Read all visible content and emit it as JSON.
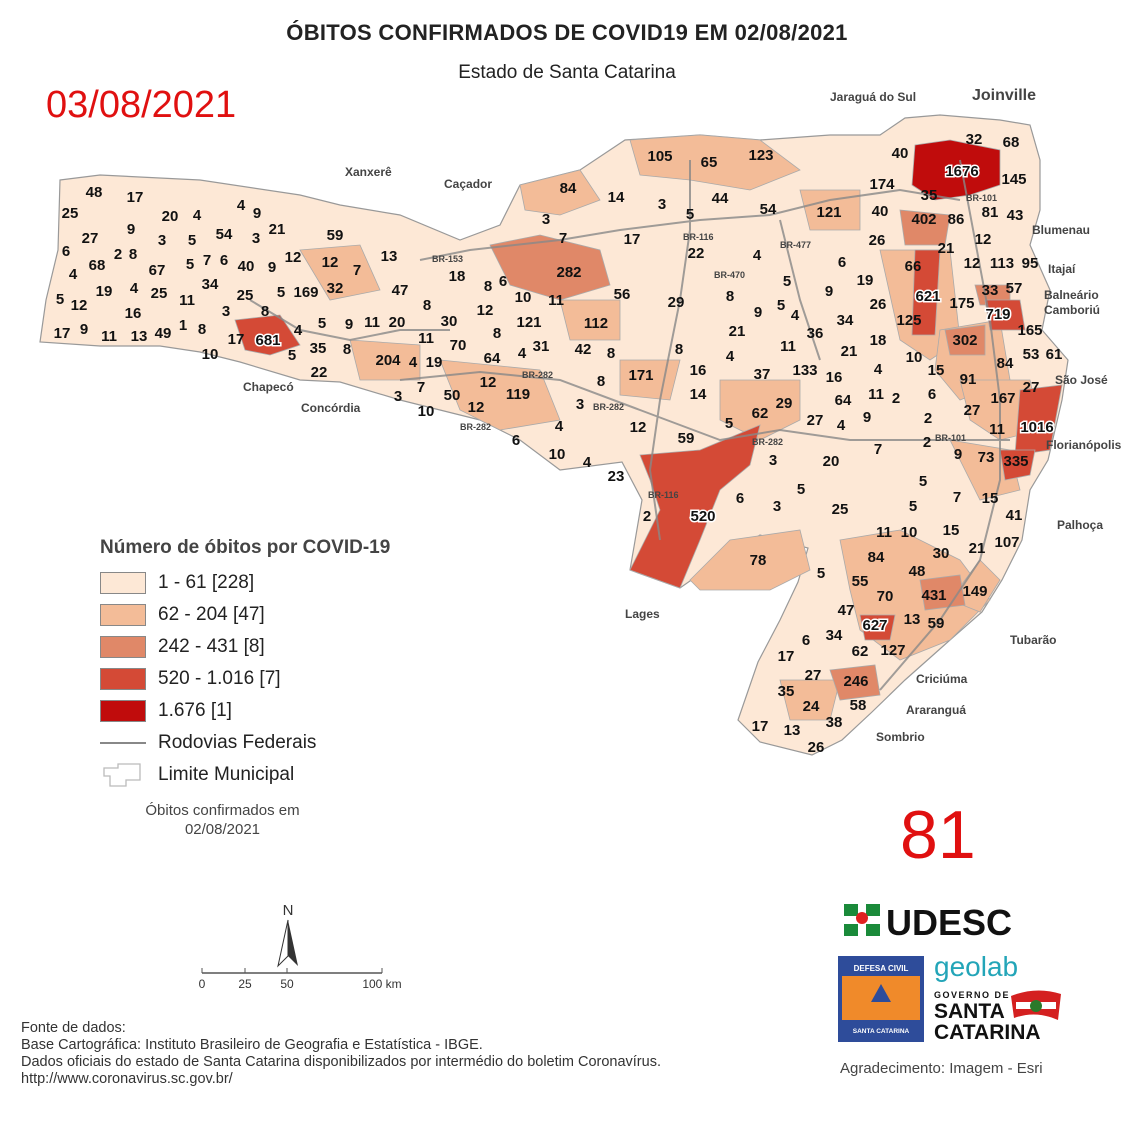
{
  "header": {
    "title": "ÓBITOS CONFIRMADOS DE COVID19 EM 02/08/2021",
    "subtitle": "Estado de Santa Catarina",
    "date_stamp": "03/08/2021",
    "daily_total": "81"
  },
  "colors": {
    "class1": "#fde8d6",
    "class2": "#f3bc98",
    "class3": "#e08868",
    "class4": "#d44a36",
    "class5": "#c00c0c",
    "road": "#888888",
    "stamp": "#e01010"
  },
  "legend": {
    "title": "Número de óbitos por COVID-19",
    "classes": [
      "1 - 61 [228]",
      "62 - 204 [47]",
      "242 - 431 [8]",
      "520 - 1.016 [7]",
      "1.676 [1]"
    ],
    "roads": "Rodovias Federais",
    "limits": "Limite Municipal",
    "note_line1": "Óbitos confirmados em",
    "note_line2": "02/08/2021"
  },
  "map": {
    "cities": [
      "Jaraguá do Sul",
      "Joinville",
      "Blumenau",
      "Itajaí",
      "Balneário",
      "Camboriú",
      "São José",
      "Florianópolis",
      "Palhoça",
      "Tubarão",
      "Criciúma",
      "Araranguá",
      "Sombrio",
      "Lages",
      "Chapecó",
      "Concórdia",
      "Xanxerê",
      "Caçador"
    ],
    "roads": [
      "BR-101",
      "BR-153",
      "BR-116",
      "BR-470",
      "BR-282",
      "BR-282",
      "BR-282",
      "BR-477",
      "BR-116",
      "BR-282",
      "BR-101"
    ],
    "labels": [
      48,
      17,
      25,
      20,
      4,
      4,
      9,
      27,
      9,
      3,
      5,
      54,
      3,
      21,
      59,
      6,
      2,
      8,
      67,
      5,
      7,
      6,
      40,
      9,
      12,
      12,
      7,
      13,
      68,
      4,
      19,
      4,
      25,
      11,
      34,
      25,
      5,
      169,
      32,
      47,
      18,
      8,
      6,
      5,
      12,
      16,
      3,
      8,
      17,
      9,
      11,
      13,
      49,
      1,
      8,
      10,
      17,
      681,
      4,
      5,
      9,
      11,
      20,
      8,
      30,
      12,
      10,
      11,
      121,
      112,
      5,
      35,
      8,
      22,
      11,
      70,
      8,
      4,
      31,
      42,
      8,
      64,
      204,
      4,
      19,
      7,
      3,
      10,
      50,
      12,
      12,
      119,
      171,
      8,
      3,
      6,
      4,
      10,
      4,
      12,
      23,
      59,
      2,
      520,
      6,
      3,
      5,
      25,
      78,
      5,
      55,
      70,
      47,
      84,
      48,
      431,
      149,
      13,
      59,
      627,
      62,
      127,
      34,
      6,
      17,
      27,
      35,
      246,
      58,
      24,
      38,
      17,
      13,
      26,
      105,
      65,
      123,
      84,
      14,
      3,
      3,
      5,
      44,
      7,
      17,
      282,
      56,
      22,
      54,
      4,
      121,
      5,
      29,
      8,
      9,
      5,
      4,
      9,
      6,
      19,
      34,
      26,
      36,
      21,
      8,
      11,
      4,
      21,
      18,
      16,
      37,
      133,
      16,
      4,
      14,
      29,
      62,
      27,
      64,
      11,
      2,
      9,
      4,
      5,
      3,
      20,
      7,
      40,
      174,
      40,
      26,
      66,
      621,
      125,
      402,
      86,
      35,
      1676,
      32,
      68,
      145,
      81,
      43,
      21,
      12,
      12,
      113,
      95,
      33,
      57,
      175,
      719,
      165,
      302,
      84,
      53,
      61,
      10,
      15,
      91,
      27,
      167,
      6,
      2,
      27,
      11,
      1016,
      2,
      9,
      73,
      335,
      5,
      7,
      15,
      41,
      5,
      11,
      10,
      15,
      107,
      30,
      21
    ]
  },
  "scale": {
    "north": "N",
    "ticks": [
      "0",
      "25",
      "50",
      "100 km"
    ]
  },
  "logos": {
    "udesc": "UDESC",
    "defesa_top": "DEFESA CIVIL",
    "defesa_bottom": "SANTA CATARINA",
    "geolab": "geolab",
    "gov1": "GOVERNO DE",
    "gov2": "SANTA",
    "gov3": "CATARINA"
  },
  "sources": {
    "l1": "Fonte de dados:",
    "l2": "Base Cartográfica: Instituto Brasileiro de Geografia e Estatística - IBGE.",
    "l3": "Dados oficiais do estado de Santa Catarina disponibilizados por intermédio do boletim Coronavírus.",
    "l4": "http://www.coronavirus.sc.gov.br/"
  },
  "thanks": "Agradecimento: Imagem - Esri"
}
